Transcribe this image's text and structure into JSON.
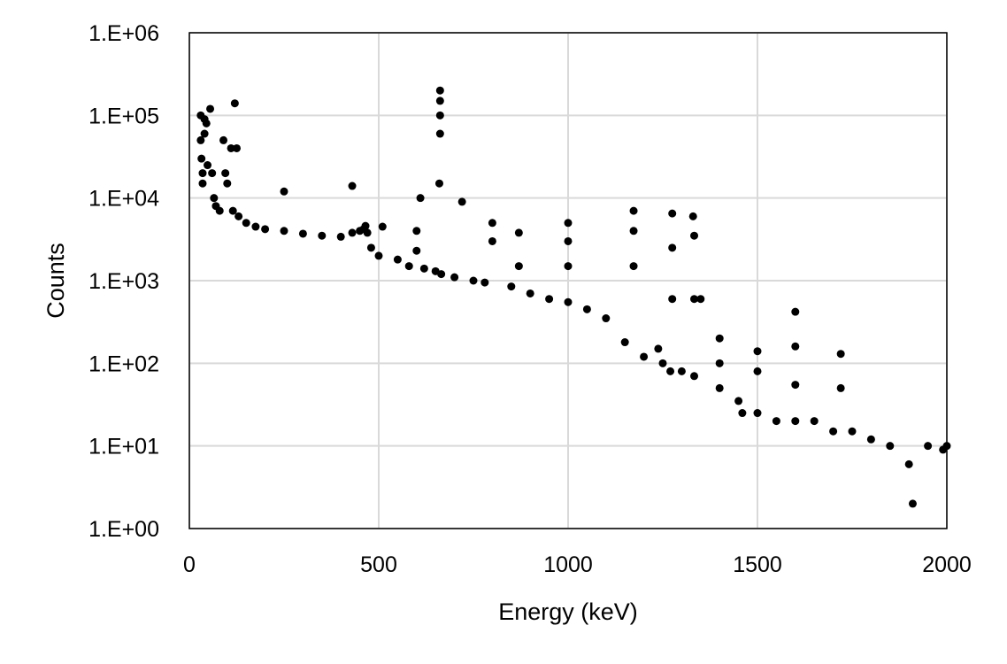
{
  "chart_data": {
    "type": "scatter",
    "title": "",
    "xlabel": "Energy (keV)",
    "ylabel": "Counts",
    "xlim": [
      0,
      2000
    ],
    "ylim": [
      1,
      1000000
    ],
    "yscale": "log",
    "grid": true,
    "legend": "none",
    "x_ticks": [
      {
        "value": 0,
        "label": "0"
      },
      {
        "value": 500,
        "label": "500"
      },
      {
        "value": 1000,
        "label": "1000"
      },
      {
        "value": 1500,
        "label": "1500"
      },
      {
        "value": 2000,
        "label": "2000"
      }
    ],
    "y_ticks": [
      {
        "value": 1,
        "label": "1.E+00"
      },
      {
        "value": 10,
        "label": "1.E+01"
      },
      {
        "value": 100,
        "label": "1.E+02"
      },
      {
        "value": 1000,
        "label": "1.E+03"
      },
      {
        "value": 10000,
        "label": "1.E+04"
      },
      {
        "value": 100000,
        "label": "1.E+05"
      },
      {
        "value": 1000000,
        "label": "1.E+06"
      }
    ],
    "colors": {
      "marker": "#000000",
      "grid": "#d9d9d9",
      "axis": "#000000"
    },
    "series": [
      {
        "x": [
          30,
          30,
          32,
          35,
          35,
          40,
          40,
          45,
          48,
          55,
          60,
          65,
          70,
          80,
          90,
          95,
          100,
          110,
          115,
          120,
          125,
          130,
          150,
          175,
          200,
          250,
          250,
          300,
          350,
          400,
          430,
          430,
          450,
          460,
          465,
          470,
          480,
          500,
          510,
          550,
          580,
          600,
          600,
          610,
          620,
          650,
          660,
          662,
          662,
          662,
          662,
          665,
          700,
          720,
          750,
          780,
          800,
          800,
          850,
          870,
          870,
          900,
          950,
          1000,
          1000,
          1000,
          1000,
          1050,
          1100,
          1150,
          1173,
          1173,
          1173,
          1200,
          1238,
          1250,
          1270,
          1275,
          1275,
          1275,
          1300,
          1330,
          1333,
          1333,
          1333,
          1350,
          1400,
          1400,
          1400,
          1450,
          1460,
          1500,
          1500,
          1500,
          1550,
          1600,
          1600,
          1600,
          1600,
          1650,
          1700,
          1720,
          1720,
          1750,
          1800,
          1850,
          1900,
          1910,
          1950,
          1990,
          2000
        ],
        "y": [
          100000,
          50000,
          30000,
          20000,
          15000,
          90000,
          60000,
          80000,
          25000,
          120000,
          20000,
          10000,
          8000,
          7000,
          50000,
          20000,
          15000,
          40000,
          7000,
          140000,
          40000,
          6000,
          5000,
          4500,
          4200,
          4000,
          12000,
          3700,
          3500,
          3400,
          3800,
          14000,
          4000,
          4200,
          4600,
          3800,
          2500,
          2000,
          4500,
          1800,
          1500,
          2300,
          4000,
          10000,
          1400,
          1300,
          15000,
          60000,
          100000,
          150000,
          200000,
          1200,
          1100,
          9000,
          1000,
          950,
          5000,
          3000,
          850,
          3800,
          1500,
          700,
          600,
          550,
          5000,
          3000,
          1500,
          450,
          350,
          180,
          7000,
          4000,
          1500,
          120,
          150,
          100,
          80,
          6500,
          2500,
          600,
          80,
          6000,
          3500,
          600,
          70,
          600,
          200,
          100,
          50,
          35,
          25,
          140,
          80,
          25,
          20,
          420,
          160,
          55,
          20,
          20,
          15,
          130,
          50,
          15,
          12,
          10,
          6,
          2,
          10,
          9,
          10
        ]
      }
    ]
  }
}
